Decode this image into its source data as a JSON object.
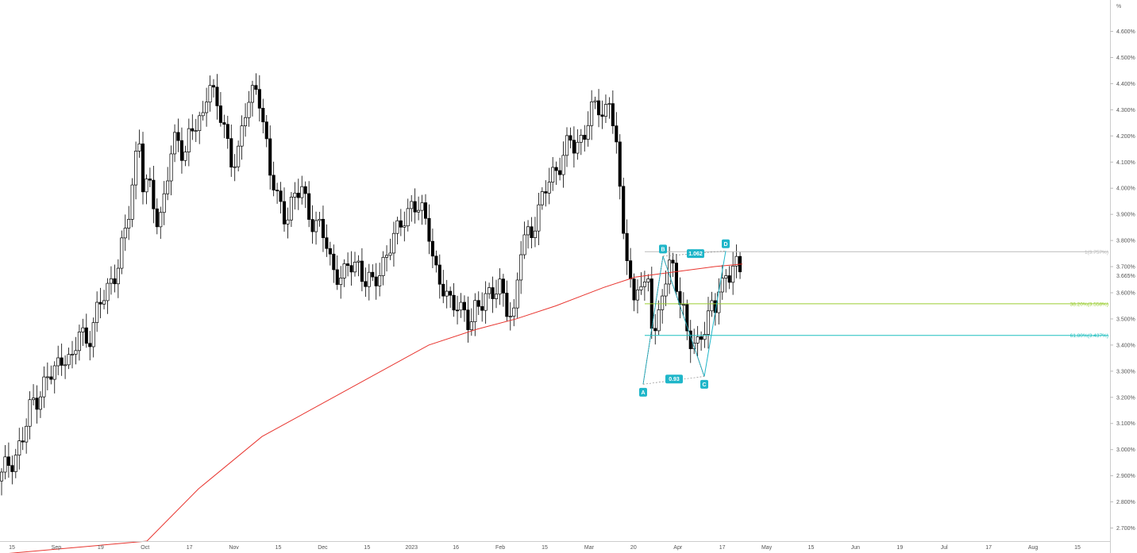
{
  "chart_data": {
    "type": "candlestick",
    "y_unit": "%",
    "ylim": [
      2.65,
      4.72
    ],
    "xlim": [
      0,
      1398
    ],
    "x_ticks": [
      "15",
      "Sep",
      "19",
      "Oct",
      "17",
      "Nov",
      "15",
      "Dec",
      "15",
      "2023",
      "16",
      "Feb",
      "15",
      "Mar",
      "20",
      "Apr",
      "17",
      "May",
      "15",
      "Jun",
      "19",
      "Jul",
      "17",
      "Aug",
      "15"
    ],
    "y_ticks": [
      "2.700%",
      "2.800%",
      "2.900%",
      "3.000%",
      "3.100%",
      "3.200%",
      "3.300%",
      "3.400%",
      "3.500%",
      "3.600%",
      "3.700%",
      "3.800%",
      "3.900%",
      "4.000%",
      "4.100%",
      "4.200%",
      "4.300%",
      "4.400%",
      "4.500%",
      "4.600%"
    ],
    "last_price": "3.665%",
    "colors": {
      "up": "#ffffff",
      "down": "#000000",
      "wick": "#000000",
      "ma": "#e8352f",
      "pattern": "#1fb6c9",
      "fib_382": "#9acd32",
      "fib_618": "#1fbfbf",
      "fib_1": "#bbbbbb"
    },
    "series_anchors": [
      [
        0,
        2.88
      ],
      [
        10,
        2.95
      ],
      [
        20,
        2.98
      ],
      [
        30,
        3.05
      ],
      [
        40,
        3.18
      ],
      [
        50,
        3.22
      ],
      [
        60,
        3.27
      ],
      [
        70,
        3.3
      ],
      [
        80,
        3.38
      ],
      [
        90,
        3.32
      ],
      [
        100,
        3.45
      ],
      [
        110,
        3.42
      ],
      [
        120,
        3.5
      ],
      [
        130,
        3.58
      ],
      [
        140,
        3.65
      ],
      [
        150,
        3.72
      ],
      [
        160,
        3.85
      ],
      [
        170,
        4.1
      ],
      [
        175,
        4.22
      ],
      [
        180,
        4.02
      ],
      [
        190,
        3.98
      ],
      [
        200,
        3.85
      ],
      [
        205,
        3.95
      ],
      [
        210,
        4.05
      ],
      [
        218,
        4.15
      ],
      [
        225,
        4.18
      ],
      [
        232,
        4.12
      ],
      [
        240,
        4.25
      ],
      [
        250,
        4.22
      ],
      [
        258,
        4.28
      ],
      [
        262,
        4.45
      ],
      [
        268,
        4.38
      ],
      [
        275,
        4.3
      ],
      [
        280,
        4.25
      ],
      [
        290,
        4.1
      ],
      [
        300,
        4.15
      ],
      [
        310,
        4.3
      ],
      [
        318,
        4.35
      ],
      [
        325,
        4.4
      ],
      [
        332,
        4.25
      ],
      [
        340,
        4.05
      ],
      [
        350,
        3.95
      ],
      [
        360,
        3.9
      ],
      [
        370,
        3.95
      ],
      [
        380,
        4.0
      ],
      [
        390,
        3.9
      ],
      [
        400,
        3.85
      ],
      [
        410,
        3.8
      ],
      [
        418,
        3.7
      ],
      [
        425,
        3.68
      ],
      [
        432,
        3.65
      ],
      [
        440,
        3.7
      ],
      [
        450,
        3.72
      ],
      [
        460,
        3.65
      ],
      [
        470,
        3.62
      ],
      [
        480,
        3.7
      ],
      [
        490,
        3.78
      ],
      [
        500,
        3.82
      ],
      [
        510,
        3.9
      ],
      [
        520,
        3.95
      ],
      [
        530,
        3.9
      ],
      [
        540,
        3.85
      ],
      [
        548,
        3.7
      ],
      [
        556,
        3.62
      ],
      [
        565,
        3.55
      ],
      [
        575,
        3.58
      ],
      [
        585,
        3.52
      ],
      [
        592,
        3.45
      ],
      [
        600,
        3.55
      ],
      [
        610,
        3.6
      ],
      [
        620,
        3.58
      ],
      [
        630,
        3.62
      ],
      [
        640,
        3.55
      ],
      [
        648,
        3.5
      ],
      [
        655,
        3.75
      ],
      [
        662,
        3.82
      ],
      [
        670,
        3.85
      ],
      [
        680,
        3.92
      ],
      [
        690,
        4.02
      ],
      [
        700,
        4.08
      ],
      [
        710,
        4.12
      ],
      [
        718,
        4.18
      ],
      [
        725,
        4.15
      ],
      [
        735,
        4.22
      ],
      [
        745,
        4.28
      ],
      [
        752,
        4.32
      ],
      [
        760,
        4.28
      ],
      [
        768,
        4.35
      ],
      [
        775,
        4.2
      ],
      [
        780,
        3.98
      ],
      [
        785,
        3.85
      ],
      [
        790,
        3.75
      ],
      [
        795,
        3.62
      ],
      [
        800,
        3.55
      ],
      [
        805,
        3.7
      ],
      [
        810,
        3.52
      ],
      [
        815,
        3.7
      ],
      [
        820,
        3.52
      ],
      [
        825,
        3.46
      ],
      [
        830,
        3.52
      ],
      [
        835,
        3.62
      ],
      [
        840,
        3.65
      ],
      [
        845,
        3.7
      ],
      [
        850,
        3.68
      ],
      [
        855,
        3.6
      ],
      [
        860,
        3.55
      ],
      [
        865,
        3.45
      ],
      [
        870,
        3.4
      ],
      [
        875,
        3.38
      ],
      [
        880,
        3.4
      ],
      [
        885,
        3.48
      ],
      [
        890,
        3.5
      ],
      [
        895,
        3.55
      ],
      [
        900,
        3.52
      ],
      [
        905,
        3.6
      ],
      [
        910,
        3.62
      ],
      [
        915,
        3.68
      ],
      [
        920,
        3.7
      ],
      [
        925,
        3.72
      ],
      [
        930,
        3.68
      ],
      [
        935,
        3.66
      ]
    ],
    "moving_average": [
      [
        0,
        2.6
      ],
      [
        185,
        2.65
      ],
      [
        250,
        2.85
      ],
      [
        330,
        3.05
      ],
      [
        450,
        3.25
      ],
      [
        540,
        3.4
      ],
      [
        600,
        3.46
      ],
      [
        650,
        3.5
      ],
      [
        700,
        3.55
      ],
      [
        760,
        3.62
      ],
      [
        800,
        3.66
      ],
      [
        850,
        3.68
      ],
      [
        900,
        3.7
      ],
      [
        935,
        3.71
      ]
    ],
    "harmonic_pattern": {
      "points": [
        {
          "label": "A",
          "x": 810,
          "y": 3.25
        },
        {
          "label": "B",
          "x": 835,
          "y": 3.74
        },
        {
          "label": "C",
          "x": 887,
          "y": 3.28
        },
        {
          "label": "D",
          "x": 914,
          "y": 3.76
        }
      ],
      "ratios": [
        {
          "label": "1.062",
          "x": 876,
          "y": 3.75
        },
        {
          "label": "0.93",
          "x": 849,
          "y": 3.27
        }
      ]
    },
    "fib_levels": [
      {
        "label": "1(3.757%)",
        "value": 3.757
      },
      {
        "label": "38.20%(3.558%)",
        "value": 3.558
      },
      {
        "label": "61.80%(3.437%)",
        "value": 3.437
      }
    ]
  }
}
